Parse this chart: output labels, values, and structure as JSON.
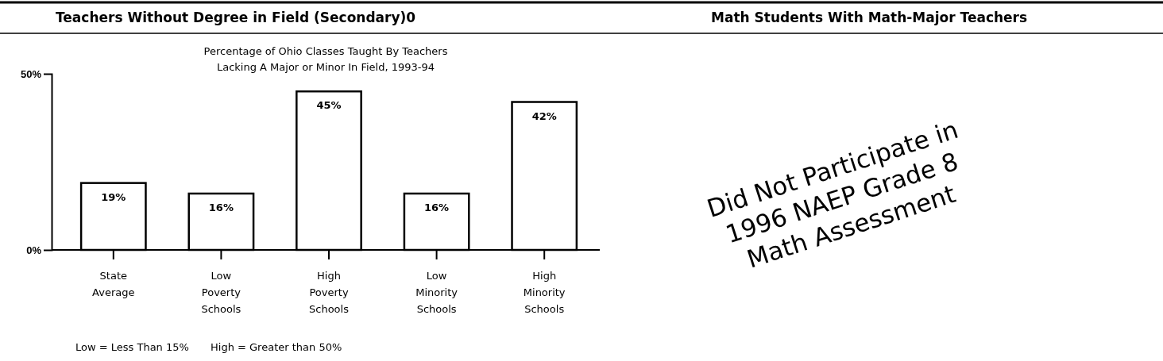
{
  "chart_data": {
    "type": "bar",
    "title": "Teachers Without Degree in Field (Secondary)0",
    "subtitle": "Percentage of Ohio Classes Taught By Teachers\nLacking A Major or Minor In Field, 1993-94",
    "categories": [
      "State Average",
      "Low Poverty Schools",
      "High Poverty Schools",
      "Low Minority Schools",
      "High Minority Schools"
    ],
    "values": [
      19,
      16,
      45,
      16,
      42
    ],
    "value_labels": [
      "19%",
      "16%",
      "45%",
      "16%",
      "42%"
    ],
    "color": "#ffffff",
    "ylim": [
      0,
      50
    ],
    "yticks": [
      {
        "value": 0,
        "label": "0%"
      },
      {
        "value": 50,
        "label": "50%"
      }
    ],
    "annotations": [
      "Low = Less Than 15%",
      "High = Greater than 50%",
      "Math Students With Math-Major Teachers",
      "Did Not Participate in\n1996 NAEP Grade 8\nMath Assessment"
    ]
  }
}
